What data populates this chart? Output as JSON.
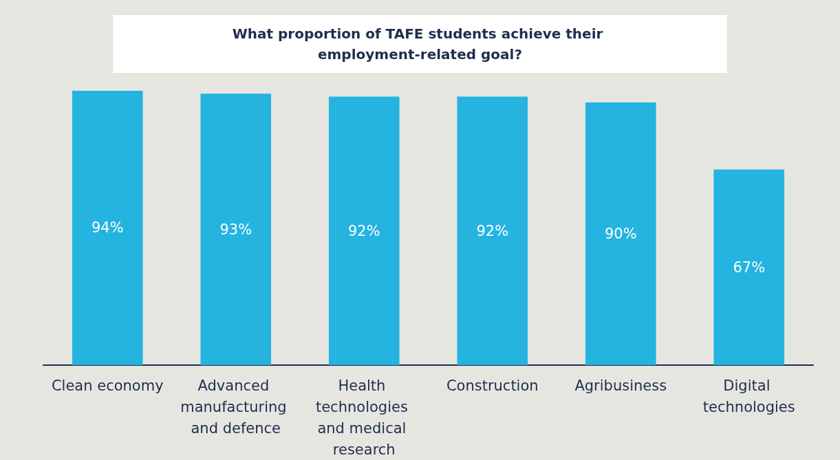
{
  "chart_data": {
    "type": "bar",
    "title": "What proportion of TAFE students achieve their employment-related goal?",
    "categories": [
      "Clean economy",
      "Advanced manufacturing and defence",
      "Health technologies and medical research",
      "Construction",
      "Agribusiness",
      "Digital technologies"
    ],
    "values": [
      94,
      93,
      92,
      92,
      90,
      67
    ],
    "value_labels": [
      "94%",
      "93%",
      "92%",
      "92%",
      "90%",
      "67%"
    ],
    "color": "#25b3e0"
  }
}
